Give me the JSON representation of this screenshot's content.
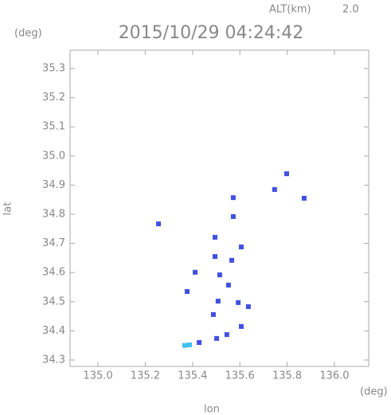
{
  "chart_data": {
    "type": "scatter",
    "title": "2015/10/29 04:24:42",
    "alt_label": "ALT(km)",
    "alt_value": "2.0",
    "y_unit": "(deg)",
    "x_unit": "(deg)",
    "xlabel": "lon",
    "ylabel": "lat",
    "xlim": [
      134.882,
      136.145
    ],
    "ylim": [
      34.278,
      35.363
    ],
    "xticks": [
      {
        "value": 135,
        "label": "135.0"
      },
      135.2,
      135.4,
      135.6,
      135.8,
      {
        "value": 136,
        "label": "136.0"
      }
    ],
    "yticks": [
      34.3,
      34.4,
      34.5,
      34.6,
      34.7,
      34.8,
      34.9,
      {
        "value": 35,
        "label": "35.0"
      },
      35.1,
      35.2,
      35.3
    ],
    "series": [
      {
        "color": "#4050e0",
        "x": [
          135.798,
          135.747,
          135.872,
          135.572,
          135.572,
          135.256,
          135.495,
          135.606,
          135.495,
          135.566,
          135.411,
          135.515,
          135.552,
          135.377,
          135.508,
          135.593,
          135.636,
          135.488,
          135.606,
          135.545,
          135.502,
          135.428
        ],
        "y": [
          34.939,
          34.885,
          34.855,
          34.857,
          34.792,
          34.767,
          34.721,
          34.688,
          34.655,
          34.642,
          34.601,
          34.592,
          34.557,
          34.535,
          34.502,
          34.497,
          34.483,
          34.456,
          34.415,
          34.387,
          34.374,
          34.36
        ]
      },
      {
        "color": "#40c0f0",
        "x": [
          135.387,
          135.367
        ],
        "y": [
          34.352,
          34.35
        ]
      }
    ]
  }
}
